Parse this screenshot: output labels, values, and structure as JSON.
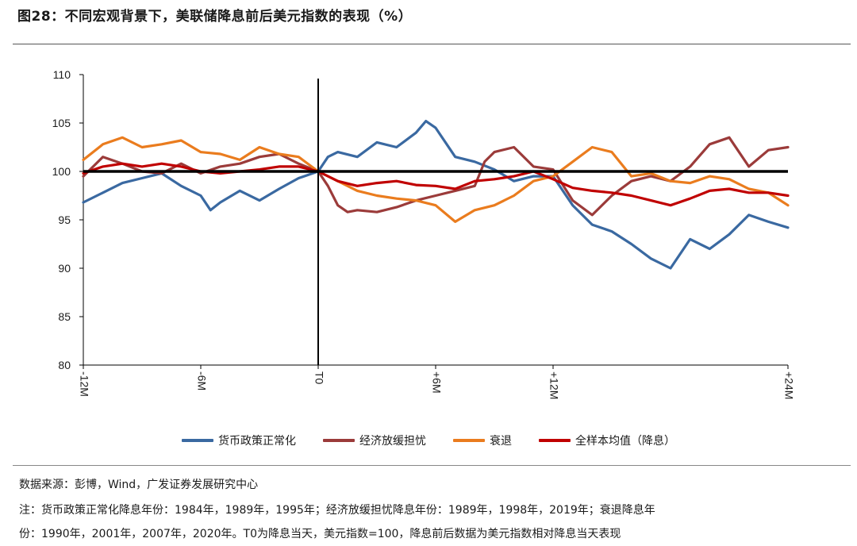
{
  "title": "图28：不同宏观背景下，美联储降息前后美元指数的表现（%）",
  "source_line": "数据来源：彭博，Wind，广发证券发展研究中心",
  "note_line1": "注：货币政策正常化降息年份：1984年，1989年，1995年；经济放缓担忧降息年份：1989年，1998年，2019年；衰退降息年",
  "note_line2": "份：1990年，2001年，2007年，2020年。T0为降息当天，美元指数=100，降息前后数据为美元指数相对降息当天表现",
  "chart_data": {
    "type": "line",
    "title": "",
    "xlabel": "",
    "ylabel": "",
    "ylim": [
      80,
      110
    ],
    "yticks": [
      80,
      85,
      90,
      95,
      100,
      105,
      110
    ],
    "x_range": [
      -12,
      24
    ],
    "xtick_positions": [
      -12,
      -6,
      0,
      6,
      12,
      24
    ],
    "xtick_labels": [
      "-12M",
      "-6M",
      "T0",
      "+6M",
      "+12M",
      "+24M"
    ],
    "grid": false,
    "legend_position": "bottom",
    "reference_lines": [
      {
        "axis": "y",
        "value": 100
      },
      {
        "axis": "x",
        "value": 0
      }
    ],
    "series": [
      {
        "name": "货币政策正常化",
        "color": "#3A69A1",
        "x": [
          -12,
          -11,
          -10,
          -9,
          -8,
          -7,
          -6,
          -5.5,
          -5,
          -4,
          -3,
          -2,
          -1,
          0,
          0.5,
          1,
          2,
          3,
          4,
          5,
          5.5,
          6,
          7,
          8,
          9,
          10,
          11,
          12,
          13,
          14,
          15,
          16,
          17,
          18,
          19,
          20,
          21,
          22,
          23,
          24
        ],
        "y": [
          96.8,
          97.8,
          98.8,
          99.3,
          99.8,
          98.5,
          97.5,
          96.0,
          96.8,
          98.0,
          97.0,
          98.2,
          99.3,
          100.0,
          101.5,
          102.0,
          101.5,
          103.0,
          102.5,
          104.0,
          105.2,
          104.5,
          101.5,
          101.0,
          100.2,
          99.0,
          99.5,
          99.5,
          96.5,
          94.5,
          93.8,
          92.5,
          91.0,
          90.0,
          93.0,
          92.0,
          93.5,
          95.5,
          94.8,
          94.2
        ]
      },
      {
        "name": "经济放缓担忧",
        "color": "#9B3B3A",
        "x": [
          -12,
          -11,
          -10,
          -9,
          -8,
          -7,
          -6,
          -5,
          -4,
          -3,
          -2,
          -1,
          0,
          0.5,
          1,
          1.5,
          2,
          3,
          4,
          5,
          6,
          7,
          8,
          8.5,
          9,
          10,
          11,
          12,
          13,
          14,
          15,
          16,
          17,
          18,
          19,
          20,
          21,
          22,
          23,
          24
        ],
        "y": [
          99.5,
          101.5,
          100.8,
          100.0,
          99.8,
          100.8,
          99.8,
          100.5,
          100.8,
          101.5,
          101.8,
          100.8,
          100.0,
          98.5,
          96.5,
          95.8,
          96.0,
          95.8,
          96.3,
          97.0,
          97.5,
          98.0,
          98.5,
          101.0,
          102.0,
          102.5,
          100.5,
          100.2,
          97.0,
          95.5,
          97.5,
          99.0,
          99.5,
          99.0,
          100.5,
          102.8,
          103.5,
          100.5,
          102.2,
          102.5
        ]
      },
      {
        "name": "衰退",
        "color": "#EA7C1E",
        "x": [
          -12,
          -11,
          -10,
          -9,
          -8,
          -7,
          -6,
          -5,
          -4,
          -3,
          -2,
          -1,
          0,
          1,
          2,
          3,
          4,
          5,
          6,
          7,
          8,
          9,
          10,
          11,
          12,
          13,
          14,
          15,
          16,
          17,
          18,
          19,
          20,
          21,
          22,
          23,
          24
        ],
        "y": [
          101.2,
          102.8,
          103.5,
          102.5,
          102.8,
          103.2,
          102.0,
          101.8,
          101.2,
          102.5,
          101.8,
          101.5,
          100.0,
          99.0,
          98.0,
          97.5,
          97.2,
          97.0,
          96.5,
          94.8,
          96.0,
          96.5,
          97.5,
          99.0,
          99.5,
          101.0,
          102.5,
          102.0,
          99.5,
          99.8,
          99.0,
          98.8,
          99.5,
          99.2,
          98.2,
          97.8,
          96.5
        ]
      },
      {
        "name": "全样本均值（降息）",
        "color": "#C00000",
        "x": [
          -12,
          -11,
          -10,
          -9,
          -8,
          -7,
          -6,
          -5,
          -4,
          -3,
          -2,
          -1,
          0,
          1,
          2,
          3,
          4,
          5,
          6,
          7,
          8,
          9,
          10,
          11,
          12,
          13,
          14,
          15,
          16,
          17,
          18,
          19,
          20,
          21,
          22,
          23,
          24
        ],
        "y": [
          99.8,
          100.5,
          100.8,
          100.5,
          100.8,
          100.5,
          100.0,
          99.8,
          100.0,
          100.2,
          100.5,
          100.5,
          100.0,
          99.0,
          98.5,
          98.8,
          99.0,
          98.6,
          98.5,
          98.2,
          99.0,
          99.2,
          99.5,
          100.0,
          99.2,
          98.3,
          98.0,
          97.8,
          97.5,
          97.0,
          96.5,
          97.2,
          98.0,
          98.2,
          97.8,
          97.8,
          97.5
        ]
      }
    ]
  }
}
